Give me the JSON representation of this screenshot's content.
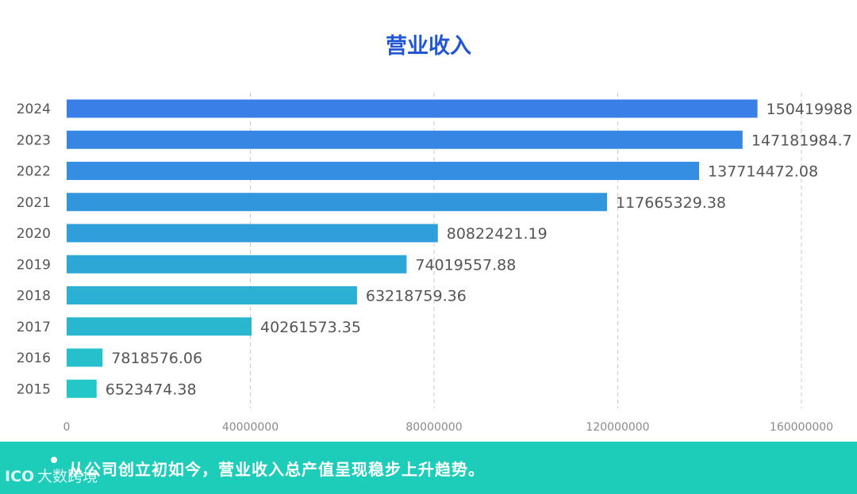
{
  "chart_data": {
    "type": "bar",
    "orientation": "horizontal",
    "title": "营业收入",
    "categories": [
      "2024",
      "2023",
      "2022",
      "2021",
      "2020",
      "2019",
      "2018",
      "2017",
      "2016",
      "2015"
    ],
    "values": [
      150419988,
      147181984.7,
      137714472.08,
      117665329.38,
      80822421.19,
      74019557.88,
      63218759.36,
      40261573.35,
      7818576.06,
      6523474.38
    ],
    "value_labels": [
      "150419988",
      "147181984.7",
      "137714472.08",
      "117665329.38",
      "80822421.19",
      "74019557.88",
      "63218759.36",
      "40261573.35",
      "7818576.06",
      "6523474.38"
    ],
    "x_ticks": [
      "0",
      "40000000",
      "80000000",
      "120000000",
      "160000000"
    ],
    "xlim": [
      0,
      160000000
    ],
    "grid": true,
    "xlabel": "",
    "ylabel": ""
  },
  "footer": {
    "text": "从公司创立初如今，营业收入总产值呈现稳步上升趋势。"
  },
  "watermark": {
    "logo": "ICO",
    "text": "大数跨境"
  },
  "colors": {
    "top_bar": "#3a7ee8",
    "bottom_bar": "#23c7c8",
    "footer_bg": "#1ecdb9",
    "title": "#2256d2",
    "label": "#555555",
    "grid": "#c8c8c8"
  }
}
